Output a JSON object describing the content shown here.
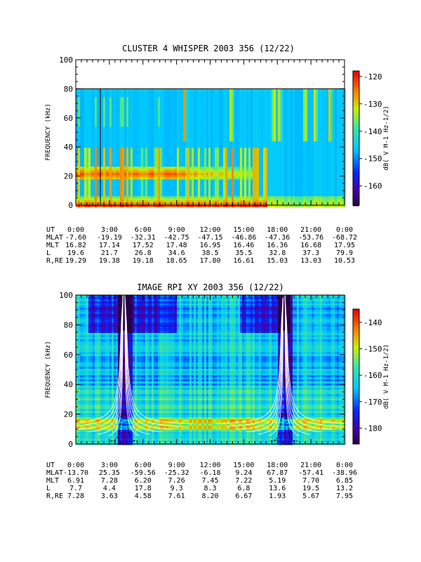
{
  "chart_data": [
    {
      "type": "heatmap",
      "title": "CLUSTER 4 WHISPER 2003 356 (12/22)",
      "ylabel": "FREQUENCY (kHz)",
      "ylim": [
        0,
        100
      ],
      "yticks": [
        "0",
        "20",
        "40",
        "60",
        "80",
        "100"
      ],
      "xlim_hours": [
        0,
        24
      ],
      "data_ceiling_khz": 80,
      "colorbar": {
        "label": "dB( V M-1 Hz-1/2)",
        "range": [
          -167,
          -118
        ],
        "ticks": [
          "-120",
          "-130",
          "-140",
          "-150",
          "-160"
        ]
      },
      "marker_line_hour": 2.2,
      "ephemeris": {
        "labels": [
          "UT",
          "MLAT",
          "MLT",
          "L",
          "R,RE"
        ],
        "rows": [
          [
            "0:00",
            "3:00",
            "6:00",
            "9:00",
            "12:00",
            "15:00",
            "18:00",
            "21:00",
            "0:00"
          ],
          [
            "-7.60",
            "-19.19",
            "-32.31",
            "-42.75",
            "-47.15",
            "-46.86",
            "-47.36",
            "-53.76",
            "-68.72"
          ],
          [
            "16.82",
            "17.14",
            "17.52",
            "17.48",
            "16.95",
            "16.46",
            "16.36",
            "16.68",
            "17.95"
          ],
          [
            "19.6",
            "21.7",
            "26.8",
            "34.6",
            "38.5",
            "35.5",
            "32.8",
            "37.3",
            "79.9"
          ],
          [
            "19.29",
            "19.38",
            "19.18",
            "18.65",
            "17.80",
            "16.61",
            "15.03",
            "13.03",
            "10.53"
          ]
        ]
      }
    },
    {
      "type": "heatmap",
      "title": "IMAGE RPI XY 2003 356 (12/22)",
      "ylabel": "FREQUENCY (kHz)",
      "ylim": [
        0,
        100
      ],
      "yticks": [
        "0",
        "20",
        "40",
        "60",
        "80",
        "100"
      ],
      "xlim_hours": [
        0,
        24
      ],
      "colorbar": {
        "label": "dB( V M-1 Hz-1/2)",
        "range": [
          -186,
          -135
        ],
        "ticks": [
          "-140",
          "-150",
          "-160",
          "-170",
          "-180"
        ]
      },
      "perigee_hours": [
        4.3,
        18.6
      ],
      "ephemeris": {
        "labels": [
          "UT",
          "MLAT",
          "MLT",
          "L",
          "R,RE"
        ],
        "rows": [
          [
            "0:00",
            "3:00",
            "6:00",
            "9:00",
            "12:00",
            "15:00",
            "18:00",
            "21:00",
            "0:00"
          ],
          [
            "-13.70",
            "25.35",
            "-59.56",
            "-25.32",
            "-6.18",
            "9.24",
            "67.87",
            "-57.41",
            "-38.96"
          ],
          [
            "6.91",
            "7.28",
            "6.20",
            "7.26",
            "7.45",
            "7.22",
            "5.19",
            "7.70",
            "6.85"
          ],
          [
            "7.7",
            "4.4",
            "17.8",
            "9.3",
            "8.3",
            "6.8",
            "13.6",
            "19.5",
            "13.2"
          ],
          [
            "7.28",
            "3.63",
            "4.58",
            "7.61",
            "8.20",
            "6.67",
            "1.93",
            "5.67",
            "7.95"
          ]
        ]
      }
    }
  ]
}
